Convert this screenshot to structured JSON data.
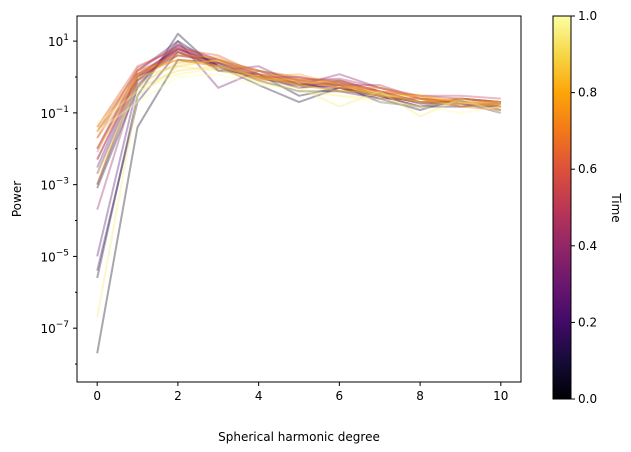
{
  "chart_data": {
    "type": "line",
    "xlabel": "Spherical harmonic degree",
    "ylabel": "Power",
    "y_scale": "log",
    "xlim": [
      -0.5,
      10.5
    ],
    "ylim_log10": [
      -8.5,
      1.7
    ],
    "x_ticks": [
      0,
      2,
      4,
      6,
      8,
      10
    ],
    "x_tick_labels": [
      "0",
      "2",
      "4",
      "6",
      "8",
      "10"
    ],
    "y_ticks_log10": [
      1,
      -1,
      -3,
      -5,
      -7
    ],
    "y_tick_labels": [
      {
        "base": "10",
        "exp": "1"
      },
      {
        "base": "10",
        "exp": "−1"
      },
      {
        "base": "10",
        "exp": "−3"
      },
      {
        "base": "10",
        "exp": "−5"
      },
      {
        "base": "10",
        "exp": "−7"
      }
    ],
    "grid": false,
    "line_alpha": 0.35,
    "degrees": [
      0,
      1,
      2,
      3,
      4,
      5,
      6,
      7,
      8,
      9,
      10
    ],
    "colormap": "inferno",
    "colorbar": {
      "label": "Time",
      "range": [
        0,
        1
      ],
      "ticks": [
        "0.0",
        "0.2",
        "0.4",
        "0.6",
        "0.8",
        "1.0"
      ]
    },
    "series": [
      {
        "time": 0.03,
        "values": [
          2e-08,
          0.04,
          3.0,
          2.5,
          1.0,
          0.6,
          0.7,
          0.3,
          0.15,
          0.2,
          0.15
        ]
      },
      {
        "time": 0.06,
        "values": [
          2.5e-06,
          0.3,
          16.0,
          1.5,
          1.2,
          0.3,
          0.5,
          0.25,
          0.12,
          0.25,
          0.2
        ]
      },
      {
        "time": 0.09,
        "values": [
          0.0008,
          0.5,
          10.0,
          2.0,
          0.6,
          0.2,
          0.5,
          0.3,
          0.2,
          0.18,
          0.15
        ]
      },
      {
        "time": 0.12,
        "values": [
          0.001,
          0.8,
          6.0,
          2.2,
          0.8,
          0.4,
          0.4,
          0.35,
          0.18,
          0.22,
          0.12
        ]
      },
      {
        "time": 0.16,
        "values": [
          4e-06,
          0.2,
          5.0,
          1.8,
          1.0,
          0.5,
          0.6,
          0.2,
          0.15,
          0.15,
          0.18
        ]
      },
      {
        "time": 0.2,
        "values": [
          0.002,
          1.0,
          4.0,
          3.0,
          1.5,
          0.6,
          0.5,
          0.3,
          0.2,
          0.2,
          0.1
        ]
      },
      {
        "time": 0.24,
        "values": [
          1e-05,
          0.6,
          8.0,
          2.0,
          1.0,
          0.7,
          0.4,
          0.25,
          0.25,
          0.15,
          0.2
        ]
      },
      {
        "time": 0.28,
        "values": [
          0.003,
          1.2,
          6.0,
          2.5,
          1.2,
          0.5,
          0.8,
          0.4,
          0.2,
          0.2,
          0.15
        ]
      },
      {
        "time": 0.32,
        "values": [
          0.01,
          1.5,
          10.0,
          0.5,
          1.5,
          0.8,
          0.6,
          0.3,
          0.15,
          0.25,
          0.2
        ]
      },
      {
        "time": 0.36,
        "values": [
          0.005,
          1.0,
          7.0,
          1.5,
          2.0,
          0.6,
          1.2,
          0.5,
          0.25,
          0.2,
          0.12
        ]
      },
      {
        "time": 0.4,
        "values": [
          0.0002,
          0.8,
          5.0,
          2.0,
          1.0,
          1.0,
          0.7,
          0.4,
          0.2,
          0.18,
          0.15
        ]
      },
      {
        "time": 0.44,
        "values": [
          0.03,
          1.5,
          8.0,
          3.0,
          1.2,
          0.8,
          0.9,
          0.5,
          0.3,
          0.25,
          0.2
        ]
      },
      {
        "time": 0.48,
        "values": [
          0.01,
          1.0,
          6.0,
          2.5,
          0.9,
          0.7,
          0.6,
          0.6,
          0.25,
          0.2,
          0.15
        ]
      },
      {
        "time": 0.52,
        "values": [
          0.02,
          1.8,
          7.0,
          3.0,
          1.5,
          0.9,
          0.8,
          0.4,
          0.3,
          0.3,
          0.25
        ]
      },
      {
        "time": 0.56,
        "values": [
          0.005,
          1.2,
          5.0,
          2.0,
          1.0,
          0.6,
          0.7,
          0.3,
          0.2,
          0.25,
          0.2
        ]
      },
      {
        "time": 0.6,
        "values": [
          0.04,
          2.0,
          6.0,
          4.0,
          1.2,
          0.8,
          0.5,
          0.5,
          0.25,
          0.2,
          0.18
        ]
      },
      {
        "time": 0.64,
        "values": [
          0.008,
          1.5,
          4.0,
          2.5,
          1.5,
          1.0,
          0.6,
          0.4,
          0.2,
          0.2,
          0.2
        ]
      },
      {
        "time": 0.68,
        "values": [
          0.03,
          1.0,
          5.0,
          3.0,
          1.0,
          0.7,
          0.8,
          0.35,
          0.3,
          0.15,
          0.12
        ]
      },
      {
        "time": 0.72,
        "values": [
          0.001,
          1.2,
          3.0,
          2.0,
          0.8,
          0.9,
          0.5,
          0.3,
          0.25,
          0.2,
          0.18
        ]
      },
      {
        "time": 0.76,
        "values": [
          0.02,
          0.8,
          4.0,
          3.5,
          1.2,
          0.6,
          0.4,
          0.4,
          0.3,
          0.2,
          0.15
        ]
      },
      {
        "time": 0.8,
        "values": [
          0.04,
          1.5,
          3.0,
          2.0,
          1.0,
          1.2,
          0.6,
          0.3,
          0.2,
          0.25,
          0.2
        ]
      },
      {
        "time": 0.84,
        "values": [
          0.01,
          0.6,
          2.5,
          2.8,
          0.9,
          0.8,
          0.5,
          0.5,
          0.25,
          0.15,
          0.18
        ]
      },
      {
        "time": 0.88,
        "values": [
          0.03,
          1.0,
          2.0,
          3.0,
          1.5,
          0.7,
          0.7,
          0.3,
          0.3,
          0.2,
          0.15
        ]
      },
      {
        "time": 0.91,
        "values": [
          0.002,
          0.5,
          1.5,
          2.0,
          1.0,
          0.6,
          0.4,
          0.35,
          0.2,
          0.18,
          0.2
        ]
      },
      {
        "time": 0.94,
        "values": [
          2e-07,
          0.3,
          2.0,
          1.5,
          0.8,
          0.5,
          0.15,
          0.4,
          0.08,
          0.25,
          0.1
        ]
      },
      {
        "time": 0.97,
        "values": [
          0.05,
          0.4,
          1.2,
          1.8,
          0.7,
          0.4,
          0.3,
          0.25,
          0.15,
          0.2,
          0.12
        ]
      },
      {
        "time": 1.0,
        "values": [
          0.03,
          0.2,
          1.0,
          1.2,
          0.6,
          0.5,
          0.3,
          0.2,
          0.15,
          0.1,
          0.15
        ]
      }
    ]
  }
}
